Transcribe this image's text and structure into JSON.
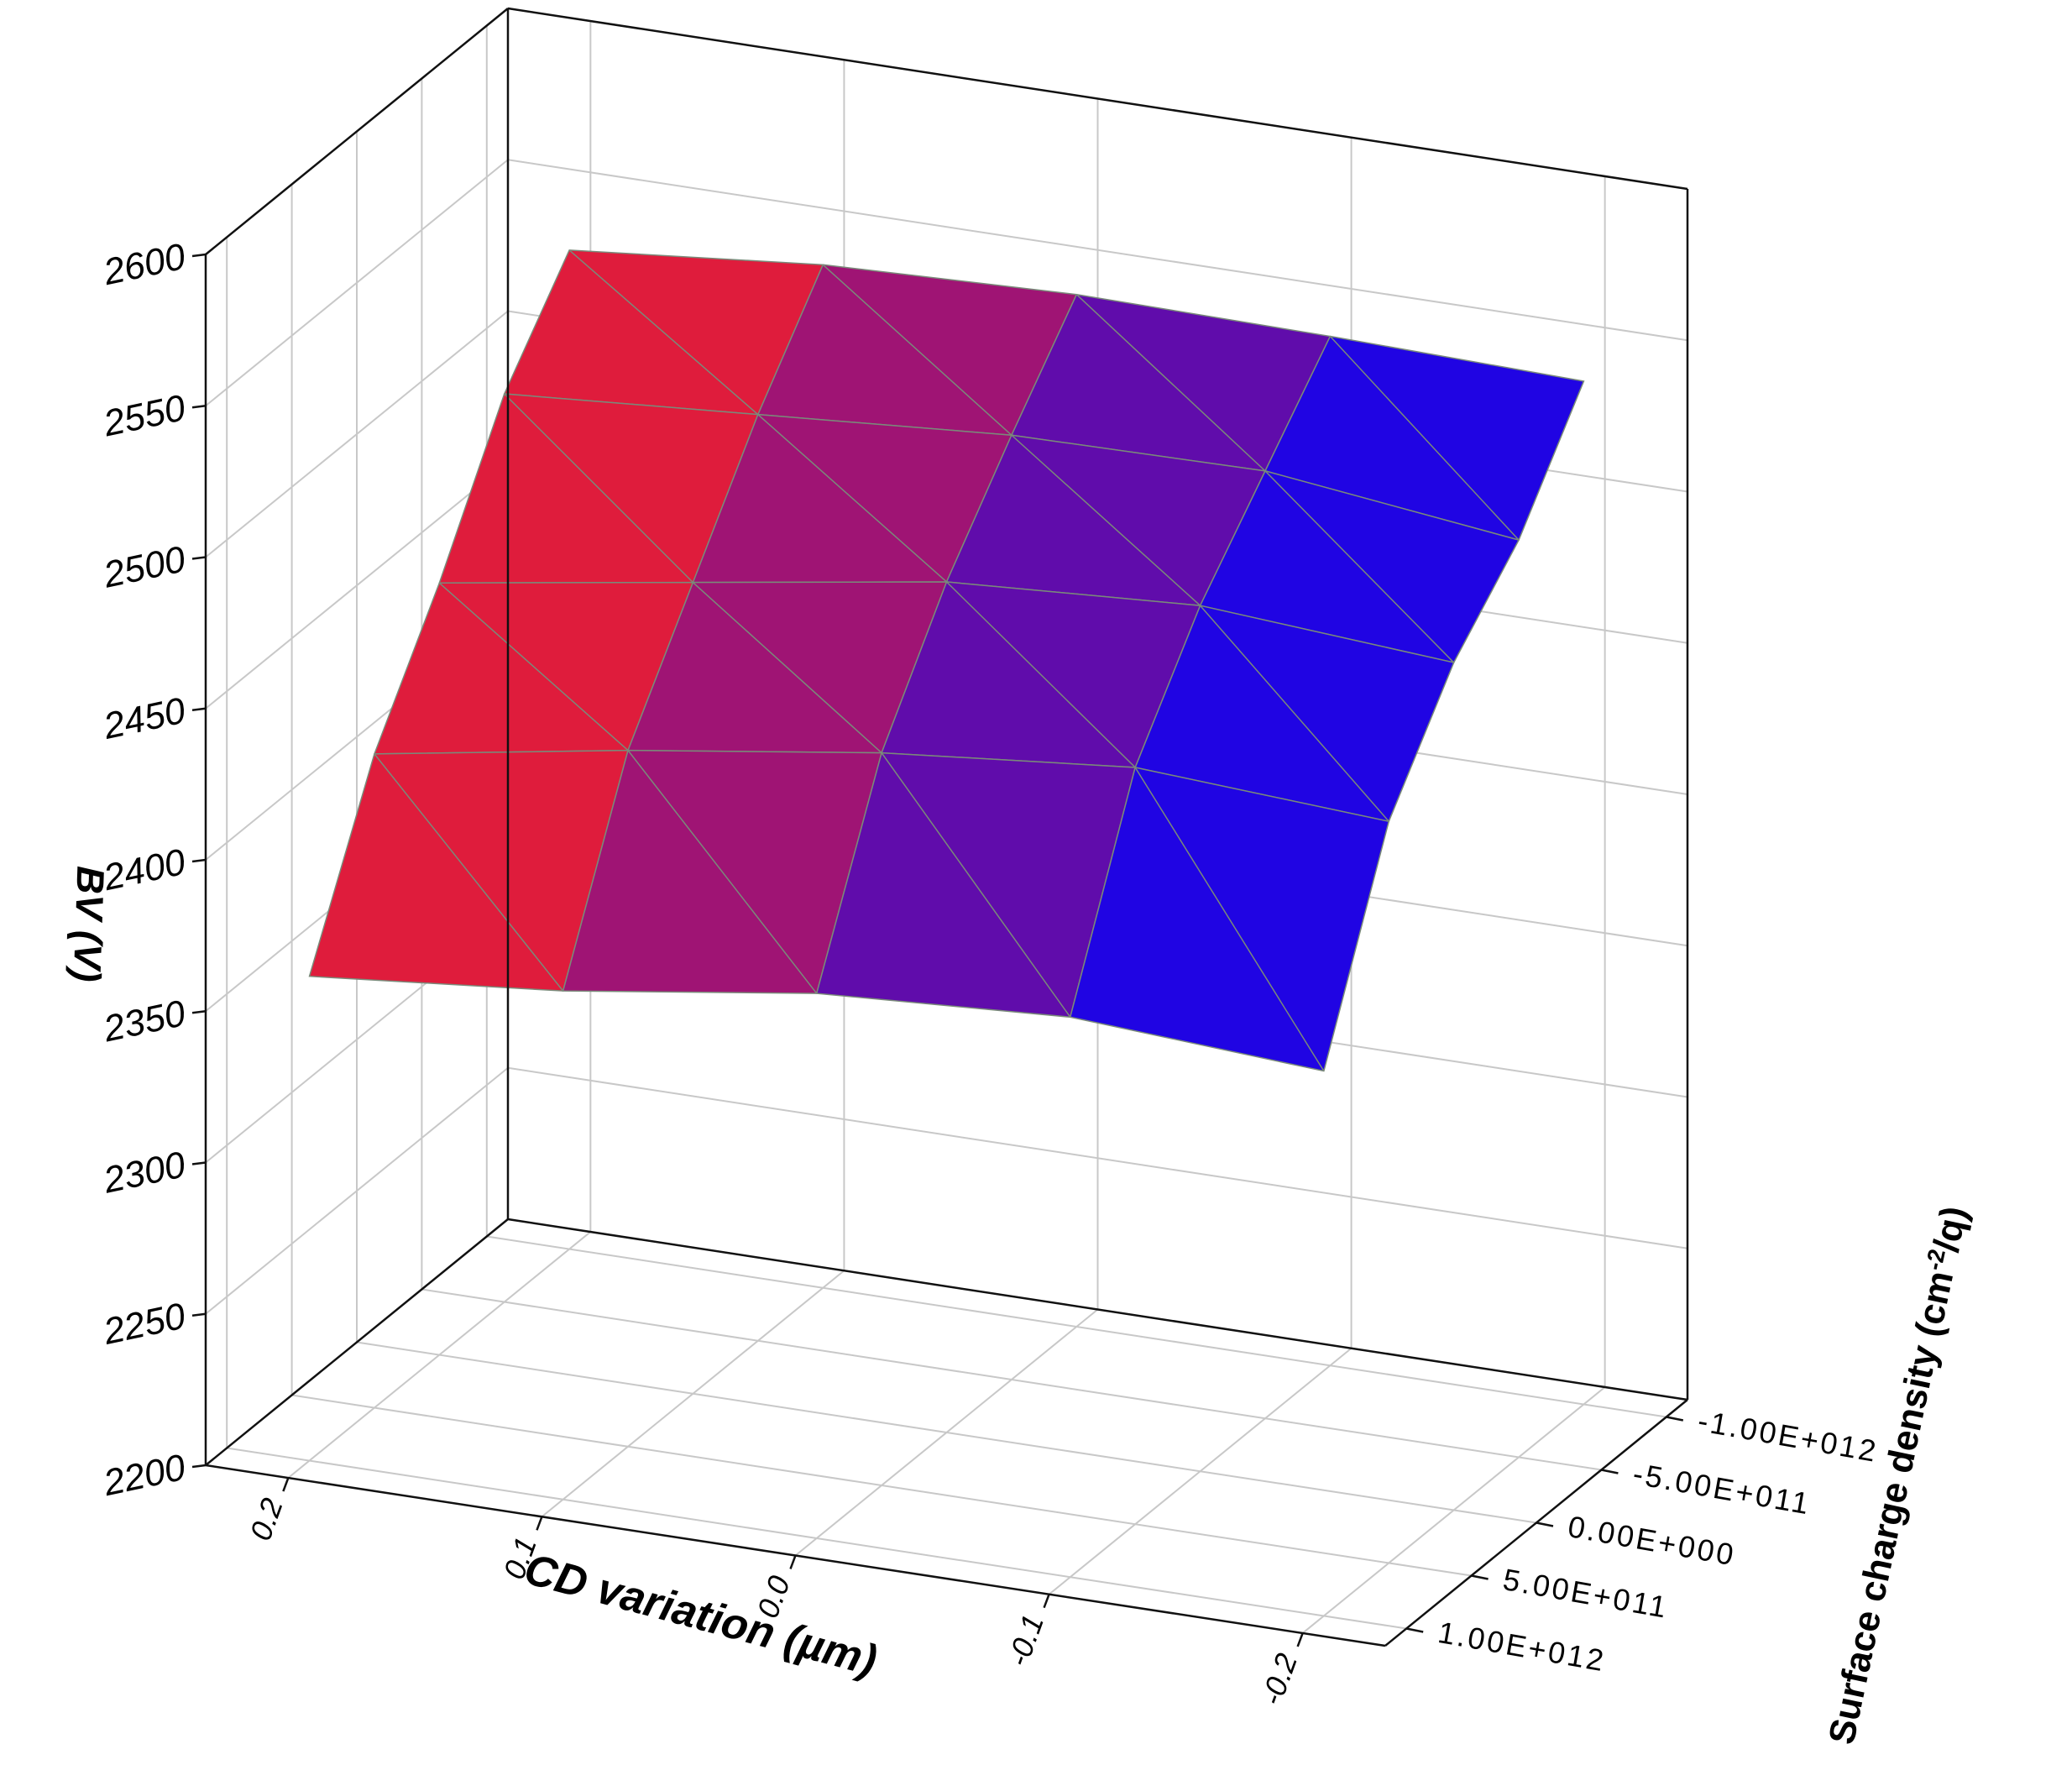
{
  "chart_data": {
    "type": "surface",
    "title": "",
    "xlabel": "CD variation (µm)",
    "ylabel": "Surface charge density (cm",
    "ylabel_sup": "-2",
    "ylabel_tail": "/q)",
    "zlabel": "BV (V)",
    "x_ticks": [
      "0.2",
      "0.1",
      "0.0",
      "-0.1",
      "-0.2"
    ],
    "y_ticks": [
      "-1.00E+012",
      "-5.00E+011",
      "0.00E+000",
      "5.00E+011",
      "1.00E+012"
    ],
    "z_ticks": [
      "2200",
      "2250",
      "2300",
      "2350",
      "2400",
      "2450",
      "2500",
      "2550",
      "2600"
    ],
    "x": [
      0.2,
      0.1,
      0.0,
      -0.1,
      -0.2
    ],
    "y": [
      -1000000000000.0,
      -500000000000.0,
      0.0,
      500000000000.0,
      1000000000000.0
    ],
    "zlim": [
      2200,
      2600
    ],
    "z_rows_note": "rows indexed by surface charge density (y), columns by CD variation (x)",
    "z": [
      [
        2530,
        2538,
        2541,
        2540,
        2538
      ],
      [
        2500,
        2506,
        2512,
        2513,
        2503
      ],
      [
        2455,
        2468,
        2481,
        2486,
        2480
      ],
      [
        2416,
        2430,
        2442,
        2450,
        2445
      ],
      [
        2360,
        2368,
        2380,
        2385,
        2380
      ]
    ],
    "colors": {
      "low": "#0000ff",
      "high": "#ff2020",
      "mesh": "#7a8a7a",
      "grid": "#c8c8c8"
    },
    "grid": true,
    "legend": "none"
  }
}
